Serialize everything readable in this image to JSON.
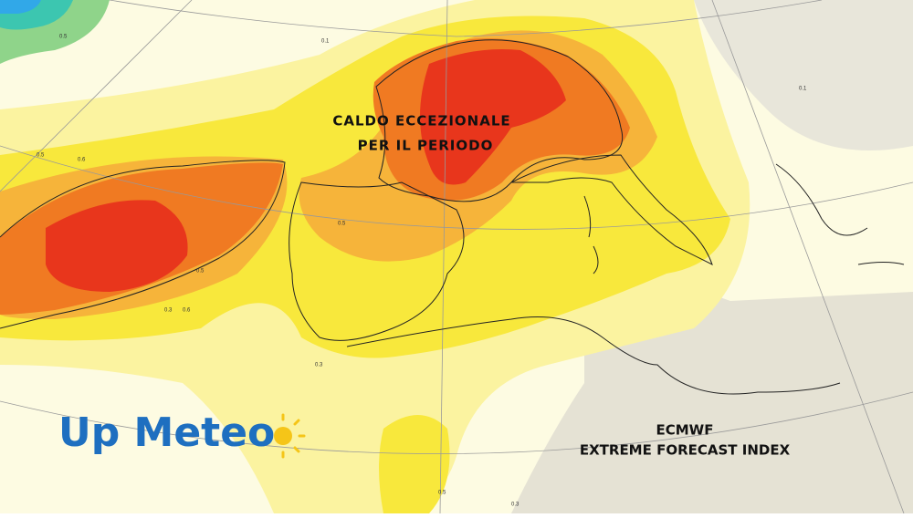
{
  "annotation": {
    "line1": "CALDO  ECCEZIONALE",
    "line2": "PER IL  PERIODO"
  },
  "logo": {
    "text": "Up Meteo"
  },
  "caption": {
    "line1": "ECMWF",
    "line2": "EXTREME FORECAST INDEX"
  },
  "contour_labels": [
    "0.5",
    "0.1",
    "0.5",
    "0.6",
    "0.5",
    "0.3",
    "0.6",
    "0.5",
    "0.1",
    "0.3",
    "0.5",
    "0.3"
  ]
}
